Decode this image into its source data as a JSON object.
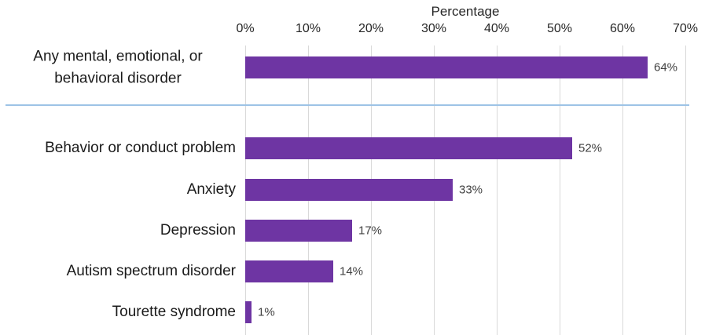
{
  "chart_data": {
    "type": "bar",
    "orientation": "horizontal",
    "title": "Percentage",
    "categories": [
      "Any mental, emotional, or behavioral disorder",
      "Behavior or conduct problem",
      "Anxiety",
      "Depression",
      "Autism spectrum disorder",
      "Tourette syndrome"
    ],
    "values": [
      64,
      52,
      33,
      17,
      14,
      1
    ],
    "value_labels": [
      "64%",
      "52%",
      "33%",
      "17%",
      "14%",
      "1%"
    ],
    "x_tick_labels": [
      "0%",
      "10%",
      "20%",
      "30%",
      "40%",
      "50%",
      "60%",
      "70%"
    ],
    "x_tick_values": [
      0,
      10,
      20,
      30,
      40,
      50,
      60,
      70
    ],
    "xlim": [
      0,
      70
    ],
    "grid": "vertical",
    "legend": "none",
    "bar_color": "#6E35A3",
    "gridline_color": "#D9D9D9",
    "separator_after_index": 0,
    "separator_color": "#9DC3E6"
  }
}
